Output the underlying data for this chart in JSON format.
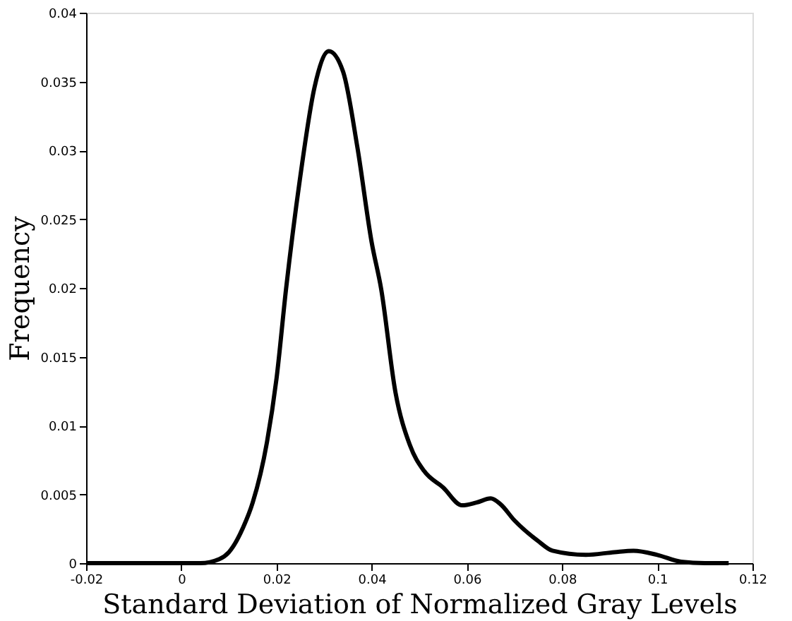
{
  "chart_data": {
    "type": "line",
    "xlabel": "Standard Deviation of Normalized Gray Levels",
    "ylabel": "Frequency",
    "x": [
      -0.02,
      0.0,
      0.004,
      0.008,
      0.01,
      0.013,
      0.015,
      0.018,
      0.02,
      0.022,
      0.025,
      0.028,
      0.031,
      0.034,
      0.037,
      0.04,
      0.042,
      0.045,
      0.048,
      0.051,
      0.055,
      0.059,
      0.062,
      0.065,
      0.067,
      0.07,
      0.075,
      0.078,
      0.085,
      0.091,
      0.095,
      0.1,
      0.105,
      0.11,
      0.115
    ],
    "series": [
      {
        "color": "#000000",
        "values": [
          0,
          0,
          0,
          0.0003,
          0.0008,
          0.0026,
          0.0044,
          0.0088,
          0.0134,
          0.0199,
          0.0281,
          0.0346,
          0.0372,
          0.0357,
          0.0302,
          0.0233,
          0.0199,
          0.0124,
          0.0086,
          0.0067,
          0.0055,
          0.0042,
          0.0044,
          0.0047,
          0.0043,
          0.0031,
          0.0016,
          0.0009,
          0.0006,
          0.0008,
          0.0009,
          0.0006,
          0.0001,
          0,
          0
        ]
      }
    ],
    "xlim": [
      -0.02,
      0.12
    ],
    "xticks": [
      {
        "value": -0.02,
        "label": "-0.02"
      },
      0,
      0.02,
      0.04,
      0.06,
      0.08,
      {
        "value": 0.1,
        "label": "0.1"
      },
      0.12
    ],
    "ylim": [
      0,
      0.04
    ],
    "yticks": [
      0,
      0.005,
      0.01,
      0.015,
      0.02,
      0.025,
      0.03,
      0.035,
      0.04
    ],
    "grid": false,
    "marker": "none",
    "line_style": "solid"
  }
}
